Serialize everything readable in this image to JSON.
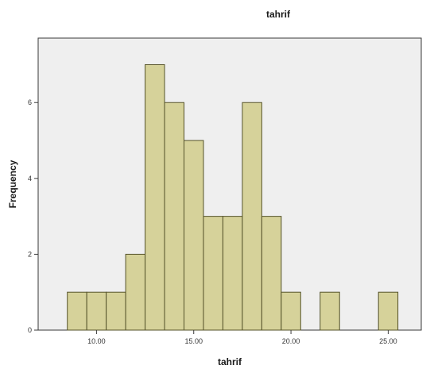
{
  "chart_data": {
    "type": "bar",
    "title": "tahrif",
    "xlabel": "tahrif",
    "ylabel": "Frequency",
    "bin_width": 1.0,
    "bin_starts": [
      8.5,
      9.5,
      10.5,
      11.5,
      12.5,
      13.5,
      14.5,
      15.5,
      16.5,
      17.5,
      18.5,
      19.5,
      21.5,
      24.5
    ],
    "values": [
      1,
      1,
      1,
      2,
      7,
      6,
      5,
      3,
      3,
      6,
      3,
      1,
      1,
      1
    ],
    "xlim": [
      7.0,
      26.7
    ],
    "ylim": [
      0,
      7.7
    ],
    "x_ticks": [
      "10.00",
      "15.00",
      "20.00",
      "25.00"
    ],
    "x_tick_values": [
      10,
      15,
      20,
      25
    ],
    "y_ticks": [
      "0",
      "2",
      "4",
      "6"
    ],
    "y_tick_values": [
      0,
      2,
      4,
      6
    ],
    "grid": false,
    "colors": {
      "bar_fill": "#d6d29a",
      "bar_stroke": "#55532a",
      "plot_background": "#efefef"
    }
  }
}
